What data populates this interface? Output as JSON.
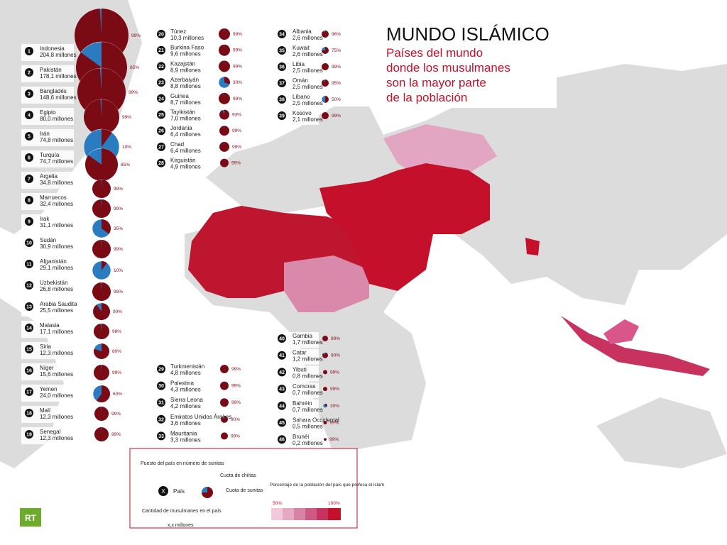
{
  "header": {
    "title": "MUNDO ISLÁMICO",
    "subtitle": [
      "Países del mundo",
      "donde los musulmanes",
      "son la mayor parte",
      "de la población"
    ]
  },
  "columns": [
    [
      {
        "rank": 1,
        "name": "Indonesia",
        "population": "204,8 millones",
        "sunni": 99,
        "sunni_label": "99%"
      },
      {
        "rank": 2,
        "name": "Pakistán",
        "population": "178,1 millones",
        "sunni": 85,
        "sunni_label": "85%"
      },
      {
        "rank": 3,
        "name": "Bangladés",
        "population": "148,6 millones",
        "sunni": 99,
        "sunni_label": "99%"
      },
      {
        "rank": 4,
        "name": "Egipto",
        "population": "80,0 millones",
        "sunni": 99,
        "sunni_label": "99%"
      },
      {
        "rank": 5,
        "name": "Irán",
        "population": "74,8 millones",
        "sunni": 10,
        "sunni_label": "10%"
      },
      {
        "rank": 6,
        "name": "Turquía",
        "population": "74,7 millones",
        "sunni": 85,
        "sunni_label": "85%"
      },
      {
        "rank": 7,
        "name": "Argelia",
        "population": "34,8 millones",
        "sunni": 99,
        "sunni_label": "99%"
      },
      {
        "rank": 8,
        "name": "Marruecos",
        "population": "32,4 millones",
        "sunni": 99,
        "sunni_label": "99%"
      },
      {
        "rank": 9,
        "name": "Irak",
        "population": "31,1 millones",
        "sunni": 35,
        "sunni_label": "35%"
      },
      {
        "rank": 10,
        "name": "Sudán",
        "population": "30,9 millones",
        "sunni": 99,
        "sunni_label": "99%"
      },
      {
        "rank": 11,
        "name": "Afganistán",
        "population": "29,1 millones",
        "sunni": 10,
        "sunni_label": "10%"
      },
      {
        "rank": 12,
        "name": "Uzbekistán",
        "population": "26,8 millones",
        "sunni": 99,
        "sunni_label": "99%"
      },
      {
        "rank": 13,
        "name": "Arabia Saudita",
        "population": "25,5 millones",
        "sunni": 90,
        "sunni_label": "90%"
      },
      {
        "rank": 14,
        "name": "Malasia",
        "population": "17,1 millones",
        "sunni": 98,
        "sunni_label": "98%"
      },
      {
        "rank": 15,
        "name": "Siria",
        "population": "12,3 millones",
        "sunni": 80,
        "sunni_label": "80%"
      },
      {
        "rank": 16,
        "name": "Níger",
        "population": "15,6 millones",
        "sunni": 99,
        "sunni_label": "99%"
      },
      {
        "rank": 17,
        "name": "Yemen",
        "population": "24,0 millones",
        "sunni": 60,
        "sunni_label": "60%"
      },
      {
        "rank": 18,
        "name": "Malí",
        "population": "12,3 millones",
        "sunni": 99,
        "sunni_label": "99%"
      },
      {
        "rank": 19,
        "name": "Senegal",
        "population": "12,3 millones",
        "sunni": 99,
        "sunni_label": "99%"
      }
    ],
    [
      {
        "rank": 20,
        "name": "Túnez",
        "population": "10,3 millones",
        "sunni": 99,
        "sunni_label": "99%"
      },
      {
        "rank": 21,
        "name": "Burkina Faso",
        "population": "9,6 millones",
        "sunni": 99,
        "sunni_label": "99%"
      },
      {
        "rank": 22,
        "name": "Kazajstán",
        "population": "8,9 millones",
        "sunni": 99,
        "sunni_label": "99%"
      },
      {
        "rank": 23,
        "name": "Azerbaiyán",
        "population": "8,8 millones",
        "sunni": 30,
        "sunni_label": "30%"
      },
      {
        "rank": 24,
        "name": "Guinea",
        "population": "8,7 millones",
        "sunni": 99,
        "sunni_label": "99%"
      },
      {
        "rank": 25,
        "name": "Tayikistán",
        "population": "7,0 millones",
        "sunni": 93,
        "sunni_label": "93%"
      },
      {
        "rank": 26,
        "name": "Jordania",
        "population": "6,4 millones",
        "sunni": 99,
        "sunni_label": "99%"
      },
      {
        "rank": 27,
        "name": "Chad",
        "population": "6,4 millones",
        "sunni": 99,
        "sunni_label": "99%"
      },
      {
        "rank": 28,
        "name": "Kirguistán",
        "population": "4,9 millones",
        "sunni": 99,
        "sunni_label": "99%"
      }
    ],
    [
      {
        "rank": 34,
        "name": "Albania",
        "population": "2,6 millones",
        "sunni": 96,
        "sunni_label": "96%"
      },
      {
        "rank": 35,
        "name": "Kuwait",
        "population": "2,6 millones",
        "sunni": 75,
        "sunni_label": "75%"
      },
      {
        "rank": 36,
        "name": "Libia",
        "population": "2,5 millones",
        "sunni": 99,
        "sunni_label": "99%"
      },
      {
        "rank": 37,
        "name": "Omán",
        "population": "2,5 millones",
        "sunni": 95,
        "sunni_label": "95%"
      },
      {
        "rank": 38,
        "name": "Líbano",
        "population": "2,5 millones",
        "sunni": 50,
        "sunni_label": "50%"
      },
      {
        "rank": 39,
        "name": "Kosovo",
        "population": "2,1 millones",
        "sunni": 99,
        "sunni_label": "99%"
      }
    ],
    [
      {
        "rank": 29,
        "name": "Turkmenistán",
        "population": "4,8 millones",
        "sunni": 99,
        "sunni_label": "99%"
      },
      {
        "rank": 30,
        "name": "Palestina",
        "population": "4,3 millones",
        "sunni": 99,
        "sunni_label": "99%"
      },
      {
        "rank": 31,
        "name": "Sierra Leona",
        "population": "4,2 millones",
        "sunni": 99,
        "sunni_label": "99%"
      },
      {
        "rank": 32,
        "name": "Emiratos Unidos Árabes",
        "population": "3,6 millones",
        "sunni": 90,
        "sunni_label": "90%"
      },
      {
        "rank": 33,
        "name": "Mauritania",
        "population": "3,3 millones",
        "sunni": 99,
        "sunni_label": "99%"
      }
    ],
    [
      {
        "rank": 40,
        "name": "Gambia",
        "population": "1,7 millones",
        "sunni": 99,
        "sunni_label": "99%"
      },
      {
        "rank": 41,
        "name": "Catar",
        "population": "1,2 millones",
        "sunni": 90,
        "sunni_label": "90%"
      },
      {
        "rank": 42,
        "name": "Yibuti",
        "population": "0,8 millones",
        "sunni": 99,
        "sunni_label": "99%"
      },
      {
        "rank": 43,
        "name": "Comoras",
        "population": "0,7 millones",
        "sunni": 99,
        "sunni_label": "99%"
      },
      {
        "rank": 44,
        "name": "Bahréin",
        "population": "0,7 millones",
        "sunni": 30,
        "sunni_label": "30%"
      },
      {
        "rank": 45,
        "name": "Sahara Occidental",
        "population": "0,5 millones",
        "sunni": 99,
        "sunni_label": "99%"
      },
      {
        "rank": 46,
        "name": "Brunéi",
        "population": "0,2 millones",
        "sunni": 99,
        "sunni_label": "99%"
      }
    ]
  ],
  "legend": {
    "rank_note": "Puesto del país en número de sunitas",
    "rank_symbol": "X",
    "country": "País",
    "count_note": "Cantidad de musulmanes en el país",
    "count_symbol": "x,x millones",
    "shia": "Cuota de chiítas",
    "sunni": "Cuota de sunitas",
    "scale_note": "Porcentaje de la población del país que profesa el islam",
    "scale_min": "50%",
    "scale_max": "100%"
  },
  "logo": "RT"
}
